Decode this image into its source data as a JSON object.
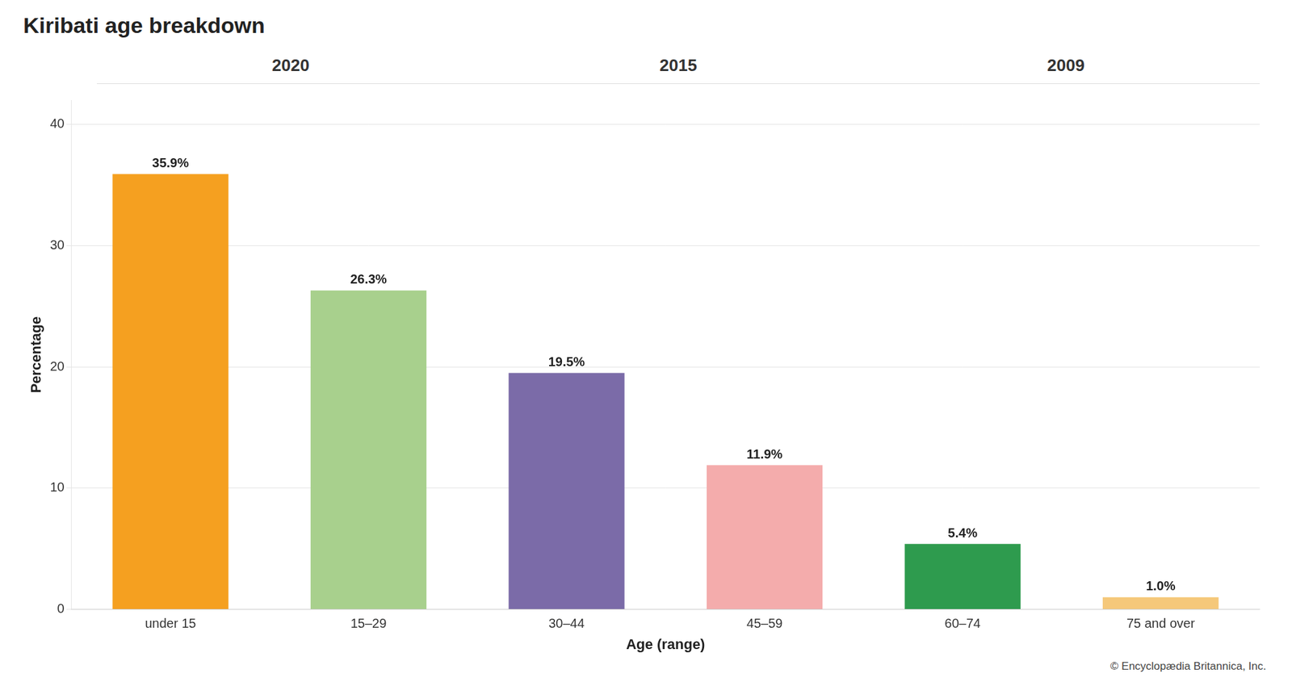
{
  "chart_data": {
    "type": "bar",
    "title": "Kiribati age breakdown",
    "categories": [
      "under 15",
      "15–29",
      "30–44",
      "45–59",
      "60–74",
      "75 and over"
    ],
    "values": [
      35.9,
      26.3,
      19.5,
      11.9,
      5.4,
      1.0
    ],
    "value_labels": [
      "35.9%",
      "26.3%",
      "19.5%",
      "11.9%",
      "5.4%",
      "1.0%"
    ],
    "data_labels": true,
    "colors": [
      "#F5A020",
      "#A8D08D",
      "#7B6BA8",
      "#F4ACAC",
      "#2E9B4E",
      "#F5C87A"
    ],
    "xlabel": "Age (range)",
    "ylabel": "Percentage",
    "ylim": [
      0,
      42
    ],
    "yticks": [
      0,
      10,
      20,
      30,
      40
    ],
    "grid": true,
    "annotations": [
      "2020",
      "2015",
      "2009"
    ],
    "footnote": "© Encyclopædia Britannica, Inc."
  }
}
